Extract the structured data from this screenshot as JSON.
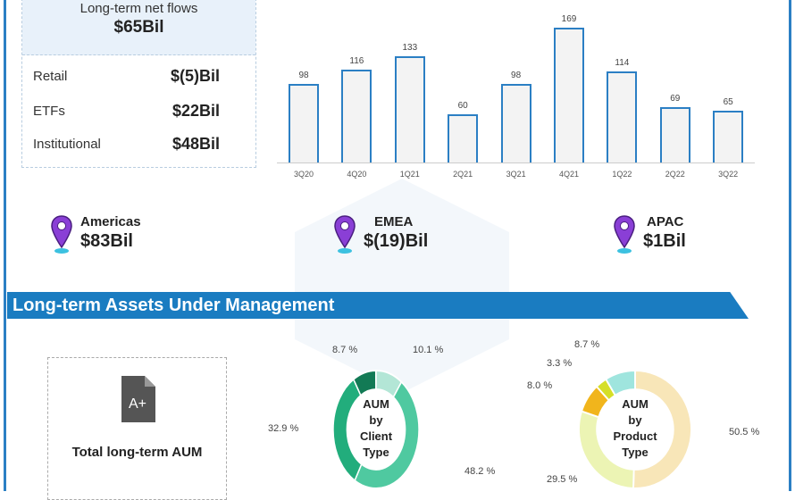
{
  "summary": {
    "title": "Long-term net flows",
    "value": "$65Bil",
    "rows": [
      {
        "label": "Retail",
        "value": "$(5)Bil"
      },
      {
        "label": "ETFs",
        "value": "$22Bil"
      },
      {
        "label": "Institutional",
        "value": "$48Bil"
      }
    ]
  },
  "chart_data": [
    {
      "type": "bar",
      "categories": [
        "3Q20",
        "4Q20",
        "1Q21",
        "2Q21",
        "3Q21",
        "4Q21",
        "1Q22",
        "2Q22",
        "3Q22"
      ],
      "values": [
        98,
        116,
        133,
        60,
        98,
        169,
        114,
        69,
        65
      ],
      "bar_fill": "#f3f3f3",
      "bar_stroke": "#2b7fc4",
      "grid": false
    },
    {
      "type": "pie",
      "donut": true,
      "center_label": [
        "AUM",
        "by",
        "Client",
        "Type"
      ],
      "slices": [
        {
          "value": 10.1,
          "label": "10.1 %",
          "color": "#b3e6d6"
        },
        {
          "value": 48.2,
          "label": "48.2 %",
          "color": "#4fc9a0"
        },
        {
          "value": 32.9,
          "label": "32.9 %",
          "color": "#22ad7c"
        },
        {
          "value": 8.7,
          "label": "8.7 %",
          "color": "#127a55"
        }
      ]
    },
    {
      "type": "pie",
      "donut": true,
      "center_label": [
        "AUM",
        "by",
        "Product",
        "Type"
      ],
      "slices": [
        {
          "value": 50.5,
          "label": "50.5 %",
          "color": "#f8e6b8"
        },
        {
          "value": 29.5,
          "label": "29.5 %",
          "color": "#ecf4b4"
        },
        {
          "value": 8.0,
          "label": "8.0 %",
          "color": "#f1b51c"
        },
        {
          "value": 3.3,
          "label": "3.3 %",
          "color": "#d5df27"
        },
        {
          "value": 8.7,
          "label": "8.7 %",
          "color": "#9fe5de"
        }
      ]
    }
  ],
  "regions": [
    {
      "name": "Americas",
      "value": "$83Bil",
      "icon": "location-pin-icon"
    },
    {
      "name": "EMEA",
      "value": "$(19)Bil",
      "icon": "location-pin-icon"
    },
    {
      "name": "APAC",
      "value": "$1Bil",
      "icon": "location-pin-icon"
    }
  ],
  "banner": {
    "title": "Long-term Assets Under Management"
  },
  "aum": {
    "title": "Total long-term AUM",
    "icon": "document-grade-icon",
    "icon_text": "A+"
  },
  "colors": {
    "accent": "#1a7cc1",
    "pin": "#8a3fd6"
  }
}
